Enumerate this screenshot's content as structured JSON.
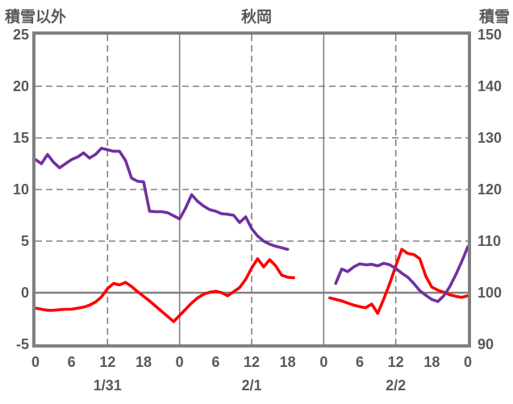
{
  "header": {
    "left_axis_title": "積雪以外",
    "chart_title": "秋岡",
    "right_axis_title": "積雪"
  },
  "colors": {
    "text_gray": "#595959",
    "grid_gray": "#808080",
    "red_series": "#ff0000",
    "purple_series": "#7030a0",
    "background": "#ffffff"
  },
  "chart_data": {
    "type": "line",
    "title": "秋岡",
    "legend": "none",
    "left_axis": {
      "title": "積雪以外",
      "max": 25,
      "min": -5,
      "tick_interval": 5,
      "ticks": [
        25,
        20,
        15,
        10,
        5,
        0,
        -5
      ]
    },
    "right_axis": {
      "title": "積雪",
      "max": 150,
      "min": 90,
      "tick_interval": 10,
      "ticks": [
        150,
        140,
        130,
        120,
        110,
        100,
        90
      ]
    },
    "x_axis": {
      "hours_total": 72,
      "tick_interval_hours": 6,
      "tick_labels": [
        "0",
        "6",
        "12",
        "18",
        "0",
        "6",
        "12",
        "18",
        "0",
        "6",
        "12",
        "18",
        "0"
      ],
      "date_labels": [
        {
          "label": "1/31",
          "center_hour": 12
        },
        {
          "label": "2/1",
          "center_hour": 36
        },
        {
          "label": "2/2",
          "center_hour": 60
        }
      ]
    },
    "grid": {
      "horizontal_dashed_left_values": [
        20,
        15,
        10,
        5
      ],
      "zero_line_left_value": 0,
      "vertical_solid_hours": [
        24,
        48
      ],
      "vertical_dashed_hours": [
        12,
        36,
        60
      ]
    },
    "series": [
      {
        "id": "red",
        "name": "積雪以外",
        "axis": "left",
        "color": "#ff0000",
        "segments": [
          [
            [
              0,
              -1.5
            ],
            [
              1,
              -1.6
            ],
            [
              2,
              -1.7
            ],
            [
              3,
              -1.7
            ],
            [
              4,
              -1.65
            ],
            [
              5,
              -1.6
            ],
            [
              6,
              -1.6
            ],
            [
              7,
              -1.5
            ],
            [
              8,
              -1.4
            ],
            [
              9,
              -1.2
            ],
            [
              10,
              -0.9
            ],
            [
              11,
              -0.4
            ],
            [
              12,
              0.4
            ],
            [
              13,
              0.9
            ],
            [
              14,
              0.75
            ],
            [
              15,
              1.0
            ],
            [
              16,
              0.6
            ],
            [
              17,
              0.1
            ],
            [
              18,
              -0.35
            ],
            [
              19,
              -0.8
            ],
            [
              20,
              -1.3
            ],
            [
              21,
              -1.8
            ],
            [
              22,
              -2.3
            ],
            [
              23,
              -2.8
            ],
            [
              24,
              -2.2
            ],
            [
              25,
              -1.6
            ],
            [
              26,
              -1.0
            ],
            [
              27,
              -0.5
            ],
            [
              28,
              -0.15
            ],
            [
              29,
              0.05
            ],
            [
              30,
              0.15
            ],
            [
              31,
              0.0
            ],
            [
              32,
              -0.3
            ],
            [
              33,
              0.1
            ],
            [
              34,
              0.5
            ],
            [
              35,
              1.3
            ],
            [
              36,
              2.4
            ],
            [
              37,
              3.3
            ],
            [
              38,
              2.5
            ],
            [
              39,
              3.2
            ],
            [
              40,
              2.6
            ],
            [
              41,
              1.7
            ],
            [
              42,
              1.5
            ],
            [
              43,
              1.45
            ]
          ],
          [
            [
              49,
              -0.5
            ],
            [
              50,
              -0.65
            ],
            [
              51,
              -0.8
            ],
            [
              52,
              -1.0
            ],
            [
              53,
              -1.2
            ],
            [
              54,
              -1.35
            ],
            [
              55,
              -1.45
            ],
            [
              56,
              -1.1
            ],
            [
              57,
              -2.0
            ],
            [
              58,
              -0.6
            ],
            [
              59,
              0.9
            ],
            [
              60,
              2.6
            ],
            [
              61,
              4.2
            ],
            [
              62,
              3.8
            ],
            [
              63,
              3.7
            ],
            [
              64,
              3.3
            ],
            [
              65,
              1.6
            ],
            [
              66,
              0.55
            ],
            [
              67,
              0.25
            ],
            [
              68,
              0.05
            ],
            [
              69,
              -0.2
            ],
            [
              70,
              -0.35
            ],
            [
              71,
              -0.45
            ],
            [
              72,
              -0.3
            ]
          ]
        ]
      },
      {
        "id": "purple",
        "name": "積雪",
        "axis": "right",
        "color": "#7030a0",
        "segments": [
          [
            [
              0,
              125.8
            ],
            [
              1,
              125.0
            ],
            [
              2,
              126.8
            ],
            [
              3,
              125.3
            ],
            [
              4,
              124.2
            ],
            [
              5,
              125.0
            ],
            [
              6,
              125.8
            ],
            [
              7,
              126.3
            ],
            [
              8,
              127.1
            ],
            [
              9,
              126.1
            ],
            [
              10,
              126.8
            ],
            [
              11,
              128.0
            ],
            [
              12,
              127.7
            ],
            [
              13,
              127.4
            ],
            [
              14,
              127.4
            ],
            [
              15,
              125.6
            ],
            [
              16,
              122.2
            ],
            [
              17,
              121.6
            ],
            [
              18,
              121.5
            ],
            [
              19,
              115.8
            ],
            [
              20,
              115.7
            ],
            [
              21,
              115.7
            ],
            [
              22,
              115.5
            ],
            [
              23,
              114.9
            ],
            [
              24,
              114.3
            ],
            [
              25,
              116.4
            ],
            [
              26,
              119.0
            ],
            [
              27,
              117.7
            ],
            [
              28,
              116.8
            ],
            [
              29,
              116.1
            ],
            [
              30,
              115.8
            ],
            [
              31,
              115.3
            ],
            [
              32,
              115.2
            ],
            [
              33,
              115.0
            ],
            [
              34,
              113.6
            ],
            [
              35,
              114.7
            ],
            [
              36,
              112.4
            ],
            [
              37,
              111.0
            ],
            [
              38,
              110.0
            ],
            [
              39,
              109.4
            ],
            [
              40,
              109.0
            ],
            [
              41,
              108.7
            ],
            [
              42,
              108.4
            ]
          ],
          [
            [
              50,
              101.8
            ],
            [
              51,
              104.6
            ],
            [
              52,
              104.1
            ],
            [
              53,
              105.0
            ],
            [
              54,
              105.6
            ],
            [
              55,
              105.4
            ],
            [
              56,
              105.5
            ],
            [
              57,
              105.2
            ],
            [
              58,
              105.7
            ],
            [
              59,
              105.4
            ],
            [
              60,
              104.7
            ],
            [
              61,
              103.8
            ],
            [
              62,
              103.0
            ],
            [
              63,
              101.8
            ],
            [
              64,
              100.4
            ],
            [
              65,
              99.5
            ],
            [
              66,
              98.7
            ],
            [
              67,
              98.3
            ],
            [
              68,
              99.4
            ],
            [
              69,
              101.2
            ],
            [
              70,
              103.5
            ],
            [
              71,
              106.1
            ],
            [
              72,
              108.9
            ]
          ]
        ]
      }
    ]
  }
}
